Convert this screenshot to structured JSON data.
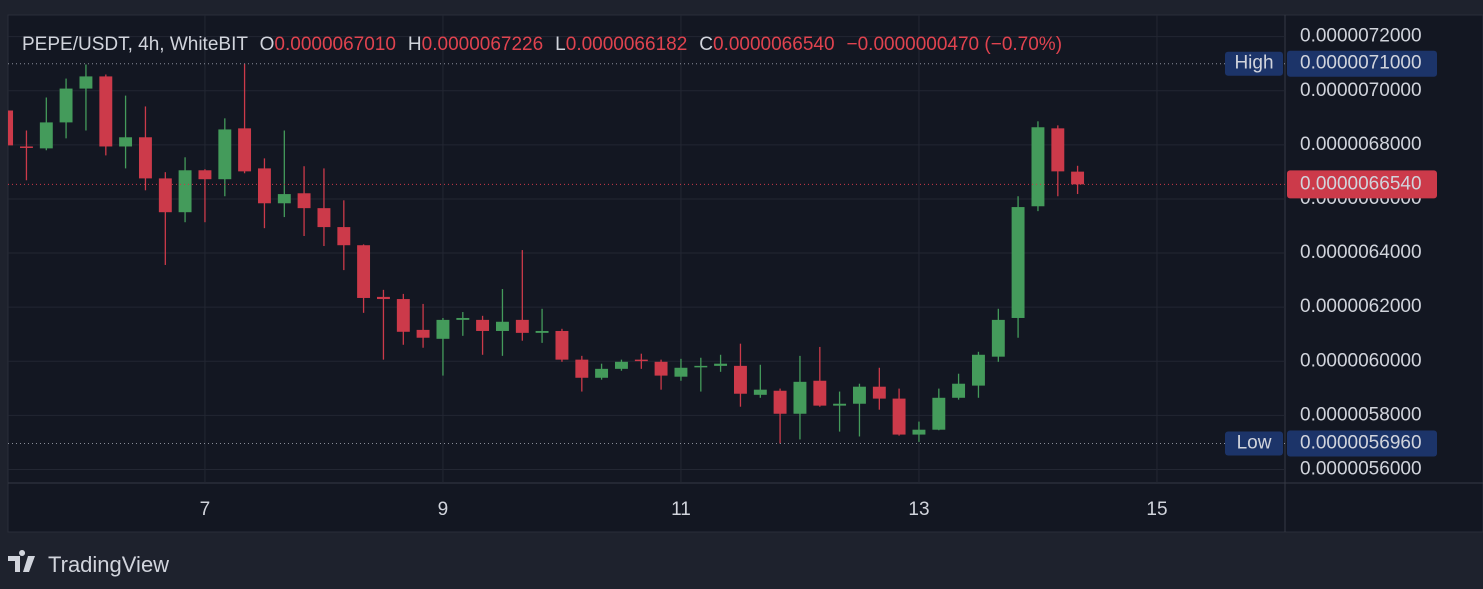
{
  "chart_data": {
    "type": "candlestick",
    "title": "PEPE/USDT, 4h, WhiteBIT",
    "ohlc_header": {
      "open_label": "O",
      "open": "0.0000067010",
      "high_label": "H",
      "high": "0.0000067226",
      "low_label": "L",
      "low": "0.0000066182",
      "close_label": "C",
      "close": "0.0000066540",
      "change": "−0.0000000470 (−0.70%)"
    },
    "x": [
      5.333,
      5.5,
      5.667,
      5.833,
      6,
      6.167,
      6.333,
      6.5,
      6.667,
      6.833,
      7,
      7.167,
      7.333,
      7.5,
      7.667,
      7.833,
      8,
      8.167,
      8.333,
      8.5,
      8.667,
      8.833,
      9,
      9.167,
      9.333,
      9.5,
      9.667,
      9.833,
      10,
      10.167,
      10.333,
      10.5,
      10.667,
      10.833,
      11,
      11.167,
      11.333,
      11.5,
      11.667,
      11.833,
      12,
      12.167,
      12.333,
      12.5,
      12.667,
      12.833,
      13,
      13.167,
      13.333,
      13.5,
      13.667,
      13.833,
      14,
      14.167,
      14.333
    ],
    "open": [
      6.927e-06,
      6.794e-06,
      6.787e-06,
      6.883e-06,
      7.008e-06,
      7.053e-06,
      6.794e-06,
      6.828e-06,
      6.676e-06,
      6.551e-06,
      6.706e-06,
      6.673e-06,
      6.861e-06,
      6.713e-06,
      6.584e-06,
      6.621e-06,
      6.566e-06,
      6.496e-06,
      6.429e-06,
      6.238e-06,
      6.23e-06,
      6.116e-06,
      6.083e-06,
      6.153e-06,
      6.153e-06,
      6.112e-06,
      6.153e-06,
      6.105e-06,
      6.112e-06,
      6.006e-06,
      5.939e-06,
      5.972e-06,
      6.006e-06,
      5.998e-06,
      5.943e-06,
      5.98e-06,
      5.983e-06,
      5.983e-06,
      5.876e-06,
      5.891e-06,
      5.806e-06,
      5.928e-06,
      5.836e-06,
      5.843e-06,
      5.906e-06,
      5.862e-06,
      5.729e-06,
      5.747e-06,
      5.865e-06,
      5.91e-06,
      6.017e-06,
      6.16e-06,
      6.573e-06,
      6.861e-06,
      6.701e-06
    ],
    "high": [
      6.964e-06,
      6.853e-06,
      6.975e-06,
      7.045e-06,
      7.097e-06,
      7.06e-06,
      6.982e-06,
      6.942e-06,
      6.699e-06,
      6.754e-06,
      6.71e-06,
      6.898e-06,
      7.1e-06,
      6.75e-06,
      6.853e-06,
      6.721e-06,
      6.713e-06,
      6.595e-06,
      6.432e-06,
      6.264e-06,
      6.249e-06,
      6.212e-06,
      6.16e-06,
      6.182e-06,
      6.168e-06,
      6.267e-06,
      6.411e-06,
      6.194e-06,
      6.12e-06,
      6.02e-06,
      5.991e-06,
      6.006e-06,
      6.028e-06,
      6.006e-06,
      6.009e-06,
      6.013e-06,
      6.024e-06,
      6.065e-06,
      5.987e-06,
      5.899e-06,
      6.02e-06,
      6.053e-06,
      5.888e-06,
      5.917e-06,
      5.976e-06,
      5.899e-06,
      5.777e-06,
      5.899e-06,
      5.954e-06,
      6.035e-06,
      6.194e-06,
      6.61e-06,
      6.887e-06,
      6.872e-06,
      6.7226e-06
    ],
    "low": [
      6.78e-06,
      6.669e-06,
      6.78e-06,
      6.824e-06,
      6.853e-06,
      6.761e-06,
      6.713e-06,
      6.632e-06,
      6.356e-06,
      6.514e-06,
      6.514e-06,
      6.61e-06,
      6.695e-06,
      6.492e-06,
      6.533e-06,
      6.463e-06,
      6.426e-06,
      6.337e-06,
      6.179e-06,
      6.006e-06,
      6.061e-06,
      6.05e-06,
      5.947e-06,
      6.094e-06,
      6.024e-06,
      6.02e-06,
      6.076e-06,
      6.068e-06,
      5.998e-06,
      5.888e-06,
      5.932e-06,
      5.965e-06,
      5.972e-06,
      5.895e-06,
      5.928e-06,
      5.888e-06,
      5.961e-06,
      5.832e-06,
      5.865e-06,
      5.696e-06,
      5.711e-06,
      5.832e-06,
      5.74e-06,
      5.722e-06,
      5.821e-06,
      5.725e-06,
      5.702e-06,
      5.745e-06,
      5.858e-06,
      5.865e-06,
      5.998e-06,
      6.087e-06,
      6.555e-06,
      6.61e-06,
      6.6182e-06
    ],
    "close": [
      6.798e-06,
      6.791e-06,
      6.883e-06,
      7.008e-06,
      7.053e-06,
      6.794e-06,
      6.828e-06,
      6.676e-06,
      6.551e-06,
      6.706e-06,
      6.673e-06,
      6.857e-06,
      6.702e-06,
      6.584e-06,
      6.618e-06,
      6.566e-06,
      6.496e-06,
      6.429e-06,
      6.234e-06,
      6.23e-06,
      6.109e-06,
      6.087e-06,
      6.153e-06,
      6.16e-06,
      6.112e-06,
      6.146e-06,
      6.105e-06,
      6.112e-06,
      6.006e-06,
      5.939e-06,
      5.972e-06,
      5.998e-06,
      6.002e-06,
      5.947e-06,
      5.976e-06,
      5.983e-06,
      5.991e-06,
      5.88e-06,
      5.895e-06,
      5.806e-06,
      5.924e-06,
      5.836e-06,
      5.843e-06,
      5.906e-06,
      5.862e-06,
      5.729e-06,
      5.747e-06,
      5.865e-06,
      5.917e-06,
      6.024e-06,
      6.153e-06,
      6.57e-06,
      6.865e-06,
      6.702e-06,
      6.654e-06
    ],
    "up_color": "#449b5b",
    "down_color": "#cc3a4a",
    "xlim": [
      5.345,
      16.076
    ],
    "xticks": [
      7,
      9,
      11,
      13,
      15
    ],
    "ylim": [
      5.55e-06,
      7.28e-06
    ],
    "yticks": [
      {
        "value": 5.6e-06,
        "label": "0.0000056000"
      },
      {
        "value": 5.8e-06,
        "label": "0.0000058000"
      },
      {
        "value": 6e-06,
        "label": "0.0000060000"
      },
      {
        "value": 6.2e-06,
        "label": "0.0000062000"
      },
      {
        "value": 6.4e-06,
        "label": "0.0000064000"
      },
      {
        "value": 6.6e-06,
        "label": "0.0000066000"
      },
      {
        "value": 6.8e-06,
        "label": "0.0000068000"
      },
      {
        "value": 7e-06,
        "label": "0.0000070000"
      },
      {
        "value": 7.2e-06,
        "label": "0.0000072000"
      }
    ],
    "grid": true,
    "high_marker": {
      "label": "High",
      "value": 7.1e-06,
      "value_label": "0.0000071000"
    },
    "low_marker": {
      "label": "Low",
      "value": 5.696e-06,
      "value_label": "0.0000056960"
    },
    "last_price": {
      "value": 6.654e-06,
      "label": "0.0000066540"
    }
  },
  "brand": "TradingView"
}
